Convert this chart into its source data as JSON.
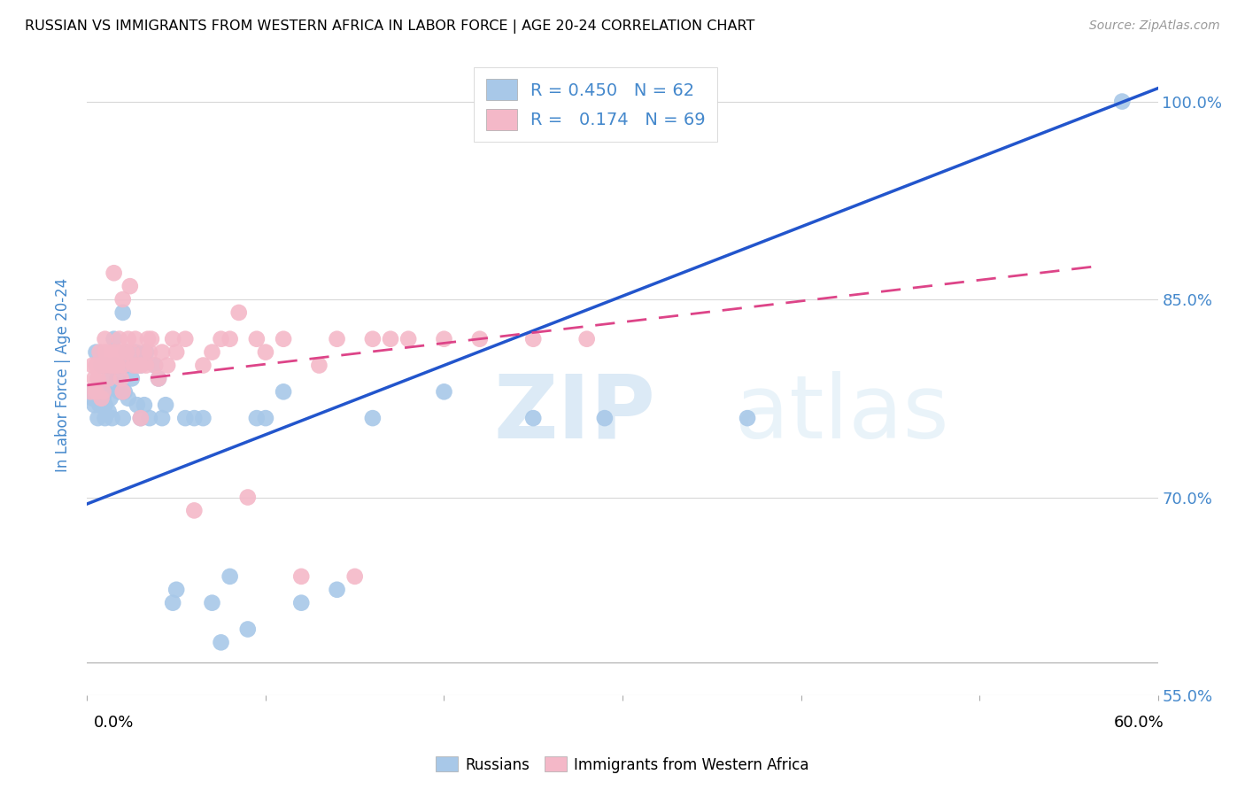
{
  "title": "RUSSIAN VS IMMIGRANTS FROM WESTERN AFRICA IN LABOR FORCE | AGE 20-24 CORRELATION CHART",
  "source": "Source: ZipAtlas.com",
  "ylabel": "In Labor Force | Age 20-24",
  "xlim": [
    0.0,
    0.6
  ],
  "ylim": [
    0.575,
    1.035
  ],
  "blue_R": 0.45,
  "blue_N": 62,
  "pink_R": 0.174,
  "pink_N": 69,
  "blue_color": "#a8c8e8",
  "pink_color": "#f4b8c8",
  "blue_line_color": "#2255cc",
  "pink_line_color": "#dd4488",
  "ytick_positions": [
    1.0,
    0.85,
    0.7,
    0.55
  ],
  "ytick_labels": [
    "100.0%",
    "85.0%",
    "70.0%",
    "55.0%"
  ],
  "xtick_positions": [
    0.0,
    0.1,
    0.2,
    0.3,
    0.4,
    0.5,
    0.6
  ],
  "grid_color": "#d8d8d8",
  "background_color": "#ffffff",
  "tick_label_color": "#4488cc",
  "blue_trend_x0": 0.0,
  "blue_trend_x1": 0.6,
  "blue_trend_y0": 0.695,
  "blue_trend_y1": 1.01,
  "pink_trend_x0": 0.0,
  "pink_trend_x1": 0.565,
  "pink_trend_y0": 0.785,
  "pink_trend_y1": 0.875,
  "blue_scatter_x": [
    0.002,
    0.003,
    0.004,
    0.005,
    0.005,
    0.006,
    0.007,
    0.008,
    0.008,
    0.009,
    0.01,
    0.01,
    0.01,
    0.01,
    0.012,
    0.012,
    0.013,
    0.014,
    0.015,
    0.015,
    0.016,
    0.017,
    0.018,
    0.02,
    0.02,
    0.021,
    0.022,
    0.022,
    0.023,
    0.025,
    0.026,
    0.027,
    0.028,
    0.03,
    0.03,
    0.032,
    0.033,
    0.035,
    0.038,
    0.04,
    0.042,
    0.044,
    0.048,
    0.05,
    0.055,
    0.06,
    0.065,
    0.07,
    0.075,
    0.08,
    0.09,
    0.095,
    0.1,
    0.11,
    0.12,
    0.14,
    0.16,
    0.2,
    0.25,
    0.29,
    0.37,
    0.58
  ],
  "blue_scatter_y": [
    0.78,
    0.775,
    0.77,
    0.78,
    0.81,
    0.76,
    0.77,
    0.78,
    0.8,
    0.775,
    0.77,
    0.76,
    0.78,
    0.8,
    0.765,
    0.79,
    0.775,
    0.76,
    0.82,
    0.8,
    0.785,
    0.79,
    0.78,
    0.76,
    0.84,
    0.78,
    0.8,
    0.81,
    0.775,
    0.79,
    0.8,
    0.81,
    0.77,
    0.76,
    0.8,
    0.77,
    0.81,
    0.76,
    0.8,
    0.79,
    0.76,
    0.77,
    0.62,
    0.63,
    0.76,
    0.76,
    0.76,
    0.62,
    0.59,
    0.64,
    0.6,
    0.76,
    0.76,
    0.78,
    0.62,
    0.63,
    0.76,
    0.78,
    0.76,
    0.76,
    0.76,
    1.0
  ],
  "pink_scatter_x": [
    0.002,
    0.003,
    0.004,
    0.005,
    0.005,
    0.006,
    0.007,
    0.007,
    0.008,
    0.009,
    0.01,
    0.01,
    0.01,
    0.012,
    0.013,
    0.014,
    0.015,
    0.015,
    0.015,
    0.016,
    0.017,
    0.018,
    0.018,
    0.019,
    0.02,
    0.02,
    0.02,
    0.022,
    0.023,
    0.024,
    0.025,
    0.026,
    0.027,
    0.028,
    0.03,
    0.03,
    0.032,
    0.033,
    0.034,
    0.035,
    0.036,
    0.038,
    0.04,
    0.042,
    0.045,
    0.048,
    0.05,
    0.055,
    0.06,
    0.065,
    0.07,
    0.075,
    0.08,
    0.085,
    0.09,
    0.095,
    0.1,
    0.11,
    0.12,
    0.13,
    0.14,
    0.15,
    0.16,
    0.17,
    0.18,
    0.2,
    0.22,
    0.25,
    0.28
  ],
  "pink_scatter_y": [
    0.78,
    0.8,
    0.79,
    0.8,
    0.78,
    0.79,
    0.8,
    0.81,
    0.775,
    0.78,
    0.81,
    0.82,
    0.8,
    0.79,
    0.8,
    0.81,
    0.8,
    0.81,
    0.87,
    0.8,
    0.8,
    0.81,
    0.82,
    0.79,
    0.78,
    0.8,
    0.85,
    0.81,
    0.82,
    0.86,
    0.81,
    0.8,
    0.82,
    0.8,
    0.76,
    0.8,
    0.81,
    0.8,
    0.82,
    0.81,
    0.82,
    0.8,
    0.79,
    0.81,
    0.8,
    0.82,
    0.81,
    0.82,
    0.69,
    0.8,
    0.81,
    0.82,
    0.82,
    0.84,
    0.7,
    0.82,
    0.81,
    0.82,
    0.64,
    0.8,
    0.82,
    0.64,
    0.82,
    0.82,
    0.82,
    0.82,
    0.82,
    0.82,
    0.82
  ]
}
